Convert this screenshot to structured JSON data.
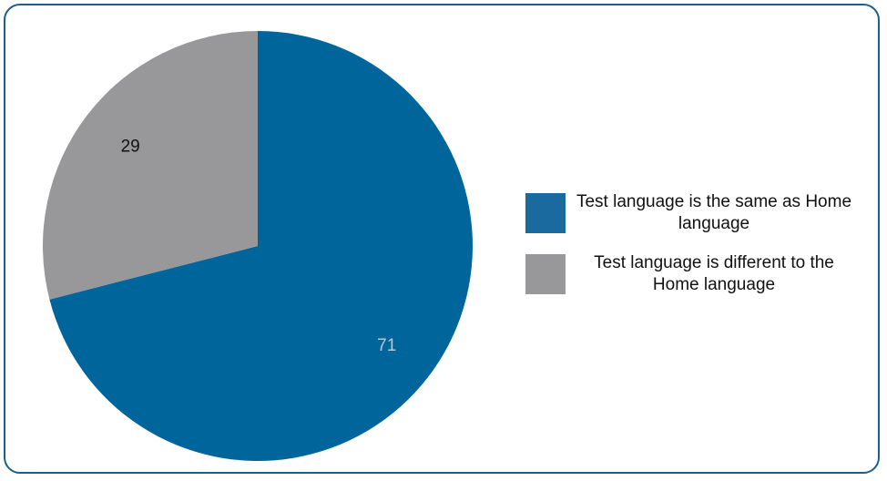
{
  "chart_data": {
    "type": "pie",
    "categories": [
      "Test language is the same as Home language",
      "Test language is different to the Home language"
    ],
    "values": [
      71,
      29
    ],
    "colors": [
      "#00659a",
      "#98989b"
    ],
    "data_labels": [
      "71",
      "29"
    ],
    "data_label_colors": [
      "#b9c8d6",
      "#111111"
    ],
    "legend_position": "right",
    "start_angle": "12 o'clock, clockwise"
  },
  "legend": {
    "items": [
      {
        "label": "Test language is the same as Home language",
        "color": "#1a6aa0"
      },
      {
        "label": "Test language is different to the Home language",
        "color": "#98989b"
      }
    ]
  },
  "colors": {
    "frame_border": "#1b5f8c"
  }
}
